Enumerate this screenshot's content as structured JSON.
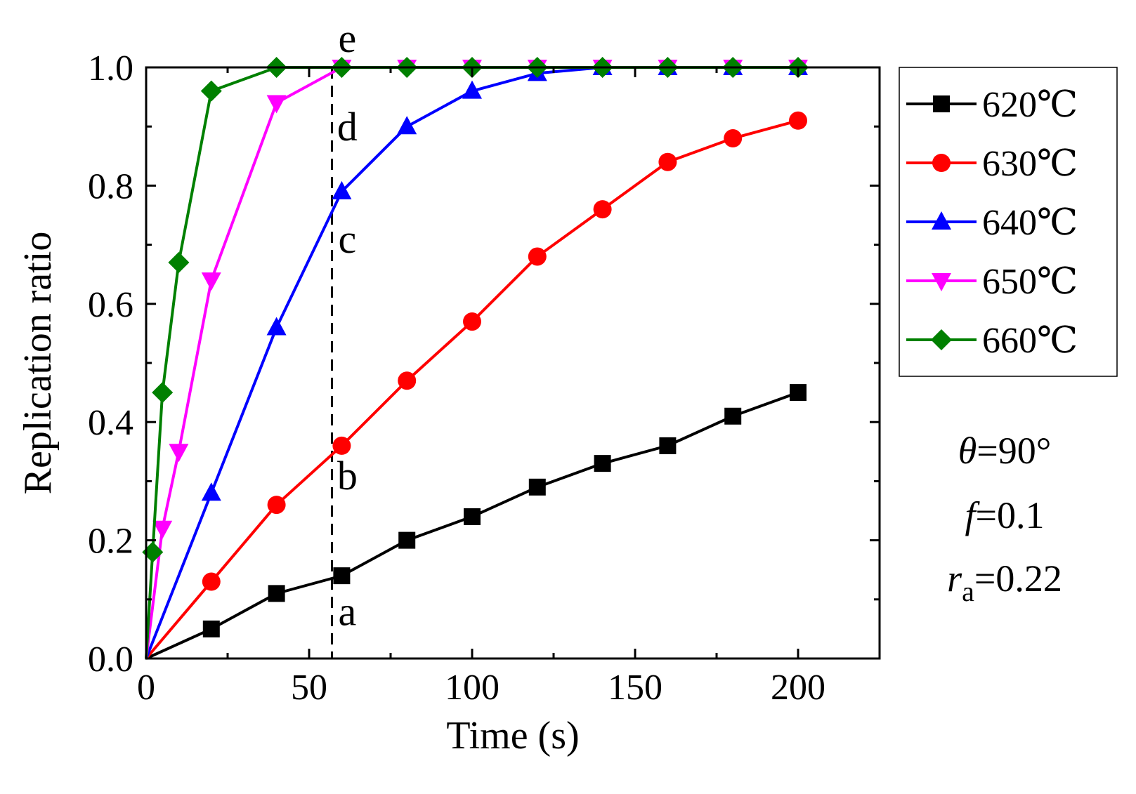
{
  "chart_data": {
    "type": "line",
    "title": "",
    "xlabel": "Time (s)",
    "ylabel": "Replication ratio",
    "xlim": [
      0,
      225
    ],
    "ylim": [
      0,
      1.0
    ],
    "xticks": [
      0,
      50,
      100,
      150,
      200
    ],
    "yticks": [
      0.0,
      0.2,
      0.4,
      0.6,
      0.8,
      1.0
    ],
    "xtick_labels": [
      "0",
      "50",
      "100",
      "150",
      "200"
    ],
    "ytick_labels": [
      "0.0",
      "0.2",
      "0.4",
      "0.6",
      "0.8",
      "1.0"
    ],
    "series": [
      {
        "name": "620℃",
        "color": "#000000",
        "marker": "square",
        "x": [
          0,
          20,
          40,
          60,
          80,
          100,
          120,
          140,
          160,
          180,
          200
        ],
        "y": [
          0.0,
          0.05,
          0.11,
          0.14,
          0.2,
          0.24,
          0.29,
          0.33,
          0.36,
          0.41,
          0.45
        ]
      },
      {
        "name": "630℃",
        "color": "#ff0000",
        "marker": "circle",
        "x": [
          0,
          20,
          40,
          60,
          80,
          100,
          120,
          140,
          160,
          180,
          200
        ],
        "y": [
          0.0,
          0.13,
          0.26,
          0.36,
          0.47,
          0.57,
          0.68,
          0.76,
          0.84,
          0.88,
          0.91
        ]
      },
      {
        "name": "640℃",
        "color": "#0000ff",
        "marker": "triangle-up",
        "x": [
          0,
          20,
          40,
          60,
          80,
          100,
          120,
          140,
          160,
          180,
          200
        ],
        "y": [
          0.0,
          0.28,
          0.56,
          0.79,
          0.9,
          0.96,
          0.99,
          1.0,
          1.0,
          1.0,
          1.0
        ]
      },
      {
        "name": "650℃",
        "color": "#ff00ff",
        "marker": "triangle-down",
        "x": [
          0,
          5,
          10,
          20,
          40,
          60,
          80,
          100,
          120,
          140,
          160,
          180,
          200
        ],
        "y": [
          0.0,
          0.22,
          0.35,
          0.64,
          0.94,
          1.0,
          1.0,
          1.0,
          1.0,
          1.0,
          1.0,
          1.0,
          1.0
        ]
      },
      {
        "name": "660℃",
        "color": "#008000",
        "marker": "diamond",
        "x": [
          0,
          2,
          5,
          10,
          20,
          40,
          60,
          80,
          100,
          120,
          140,
          160,
          180,
          200
        ],
        "y": [
          0.0,
          0.18,
          0.45,
          0.67,
          0.96,
          1.0,
          1.0,
          1.0,
          1.0,
          1.0,
          1.0,
          1.0,
          1.0,
          1.0
        ]
      }
    ],
    "reference_line": {
      "x": 57,
      "style": "dashed"
    },
    "annotations": [
      {
        "text": "a",
        "x": 60,
        "y": 0.08
      },
      {
        "text": "b",
        "x": 60,
        "y": 0.31
      },
      {
        "text": "c",
        "x": 60,
        "y": 0.71
      },
      {
        "text": "d",
        "x": 60,
        "y": 0.9
      },
      {
        "text": "e",
        "x": 60,
        "y": 1.05
      }
    ],
    "legend_position": "right",
    "parameters": {
      "theta_symbol": "θ",
      "theta_value": "=90°",
      "f_symbol": "f",
      "f_value": "=0.1",
      "r_symbol": "r",
      "r_subscript": "a",
      "r_value": "=0.22"
    }
  }
}
